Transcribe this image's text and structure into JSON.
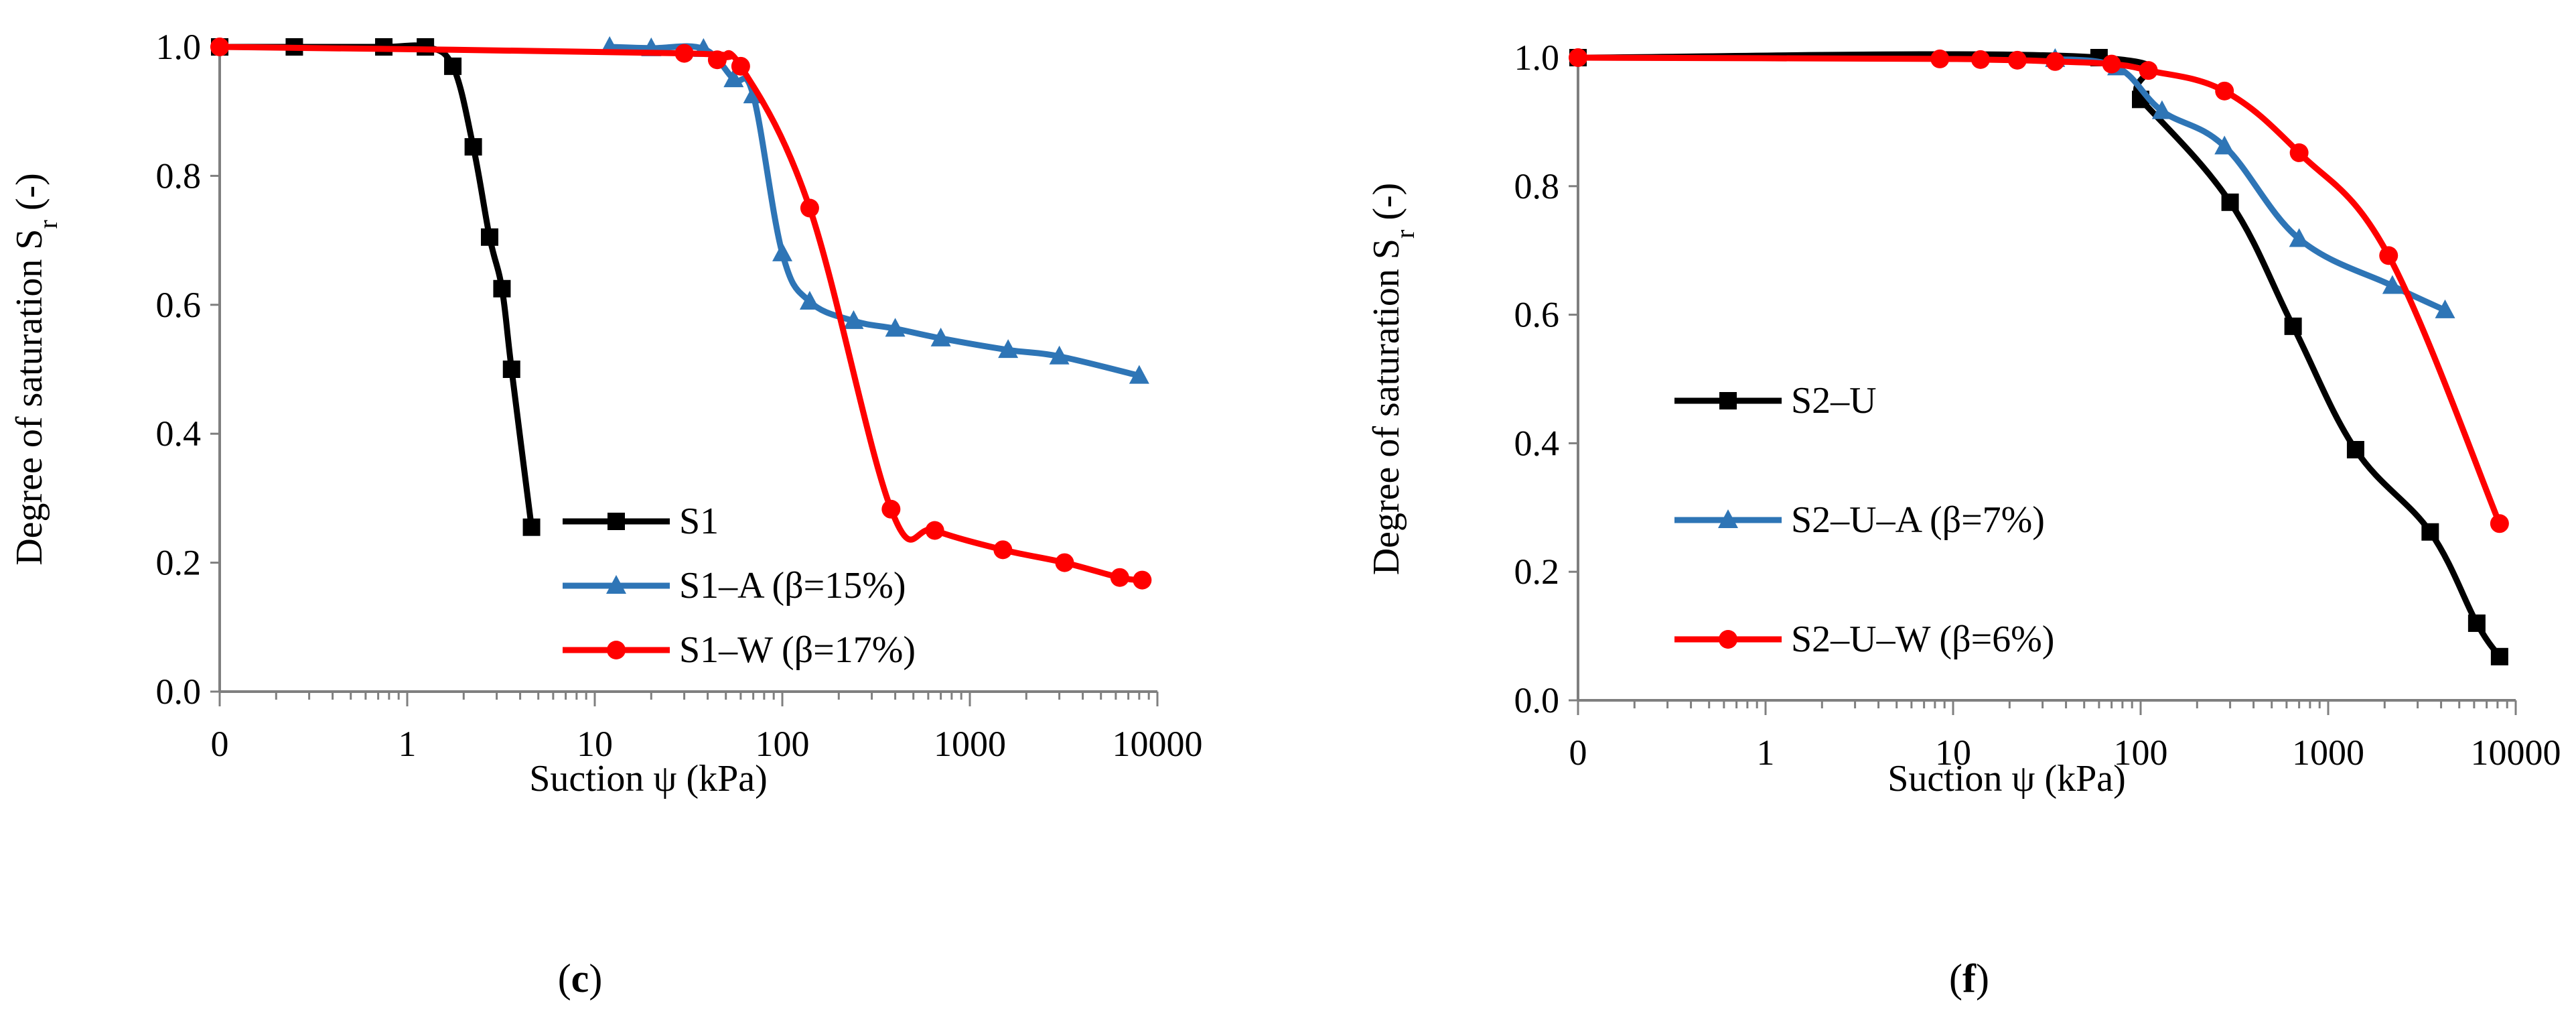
{
  "chart_data": [
    {
      "type": "line",
      "xscale": "log",
      "xlabel": "Suction  ψ (kPa)",
      "ylabel": "Degree of saturation S",
      "ylabel_sub": "r",
      "ylabel_suffix": " (-)",
      "caption_open": "(",
      "caption_letter": "c",
      "caption_close": ")",
      "x_tick_labels": [
        "0",
        "1",
        "10",
        "100",
        "1000",
        "10000"
      ],
      "x_tick_values": [
        0.1,
        1,
        10,
        100,
        1000,
        10000
      ],
      "y_tick_labels": [
        "0.0",
        "0.2",
        "0.4",
        "0.6",
        "0.8",
        "1.0"
      ],
      "y_tick_values": [
        0,
        0.2,
        0.4,
        0.6,
        0.8,
        1.0
      ],
      "xlim": [
        0.1,
        10000
      ],
      "ylim": [
        0,
        1.0
      ],
      "legend_position": "lower-center",
      "series": [
        {
          "name": "S1",
          "color": "#000000",
          "marker": "square",
          "x": [
            0.1,
            0.25,
            0.75,
            1.25,
            1.75,
            2.25,
            2.75,
            3.2,
            3.6,
            4.6
          ],
          "y": [
            1.0,
            1.0,
            1.0,
            1.0,
            0.97,
            0.845,
            0.705,
            0.625,
            0.5,
            0.255
          ]
        },
        {
          "name": "S1–A (β=15%)",
          "color": "#2e75b6",
          "marker": "triangle",
          "x": [
            12,
            20,
            38,
            55,
            70,
            100,
            140,
            240,
            400,
            700,
            1600,
            3000,
            8000
          ],
          "y": [
            1.0,
            0.998,
            0.997,
            0.95,
            0.925,
            0.68,
            0.605,
            0.575,
            0.563,
            0.548,
            0.53,
            0.52,
            0.49
          ]
        },
        {
          "name": "S1–W (β=17%)",
          "color": "#ff0000",
          "marker": "circle",
          "x": [
            0.1,
            30,
            45,
            60,
            140,
            380,
            650,
            1500,
            3200,
            6300,
            8300
          ],
          "y": [
            1.0,
            0.99,
            0.98,
            0.97,
            0.75,
            0.283,
            0.25,
            0.22,
            0.2,
            0.177,
            0.173
          ]
        }
      ]
    },
    {
      "type": "line",
      "xscale": "log",
      "xlabel": "Suction ψ (kPa)",
      "ylabel": "Degree of saturation S",
      "ylabel_sub": "r",
      "ylabel_suffix": " (-)",
      "caption_open": "(",
      "caption_letter": "f",
      "caption_close": ")",
      "x_tick_labels": [
        "0",
        "1",
        "10",
        "100",
        "1000",
        "10000"
      ],
      "x_tick_values": [
        0.1,
        1,
        10,
        100,
        1000,
        10000
      ],
      "y_tick_labels": [
        "0.0",
        "0.2",
        "0.4",
        "0.6",
        "0.8",
        "1.0"
      ],
      "y_tick_values": [
        0,
        0.2,
        0.4,
        0.6,
        0.8,
        1.0
      ],
      "xlim": [
        0.1,
        10000
      ],
      "ylim": [
        0,
        1.0
      ],
      "legend_position": "center-left",
      "series": [
        {
          "name": "S2–U",
          "color": "#000000",
          "marker": "square",
          "x": [
            0.1,
            60,
            100,
            300,
            650,
            1400,
            3500,
            6200,
            8200
          ],
          "y": [
            1.0,
            1.0,
            0.935,
            0.775,
            0.582,
            0.39,
            0.262,
            0.12,
            0.068
          ]
        },
        {
          "name": "S2–U–A (β=7%)",
          "color": "#2e75b6",
          "marker": "triangle",
          "x": [
            35,
            75,
            130,
            280,
            700,
            2200,
            4200
          ],
          "y": [
            0.998,
            0.985,
            0.917,
            0.862,
            0.718,
            0.645,
            0.607
          ]
        },
        {
          "name": "S2–U–W (β=6%)",
          "color": "#ff0000",
          "marker": "circle",
          "x": [
            0.1,
            8.5,
            14,
            22,
            35,
            70,
            110,
            280,
            700,
            2100,
            8200
          ],
          "y": [
            1.0,
            0.998,
            0.997,
            0.996,
            0.994,
            0.99,
            0.98,
            0.948,
            0.852,
            0.692,
            0.275
          ]
        }
      ]
    }
  ]
}
